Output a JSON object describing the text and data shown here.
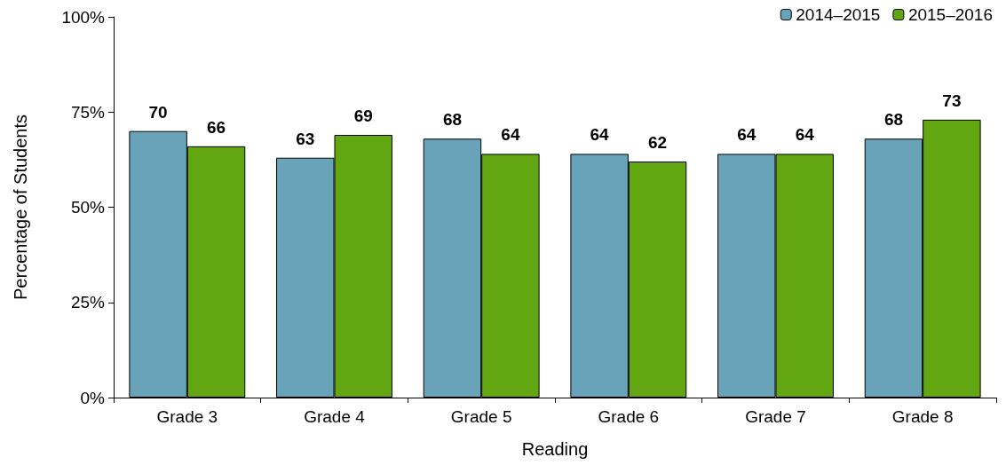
{
  "chart_data": {
    "type": "bar",
    "xlabel": "Reading",
    "ylabel": "Percentage of Students",
    "categories": [
      "Grade 3",
      "Grade 4",
      "Grade 5",
      "Grade 6",
      "Grade 7",
      "Grade 8"
    ],
    "series": [
      {
        "name": "2014–2015",
        "color": "#68a3b9",
        "values": [
          70,
          63,
          68,
          64,
          64,
          68
        ]
      },
      {
        "name": "2015–2016",
        "color": "#62a612",
        "values": [
          66,
          69,
          64,
          62,
          64,
          73
        ]
      }
    ],
    "ylim": [
      0,
      100
    ],
    "yticks": [
      {
        "value": 0,
        "label": "0%"
      },
      {
        "value": 25,
        "label": "25%"
      },
      {
        "value": 50,
        "label": "50%"
      },
      {
        "value": 75,
        "label": "75%"
      },
      {
        "value": 100,
        "label": "100%"
      }
    ],
    "data_labels": true,
    "legend": "top right",
    "grid": false
  }
}
